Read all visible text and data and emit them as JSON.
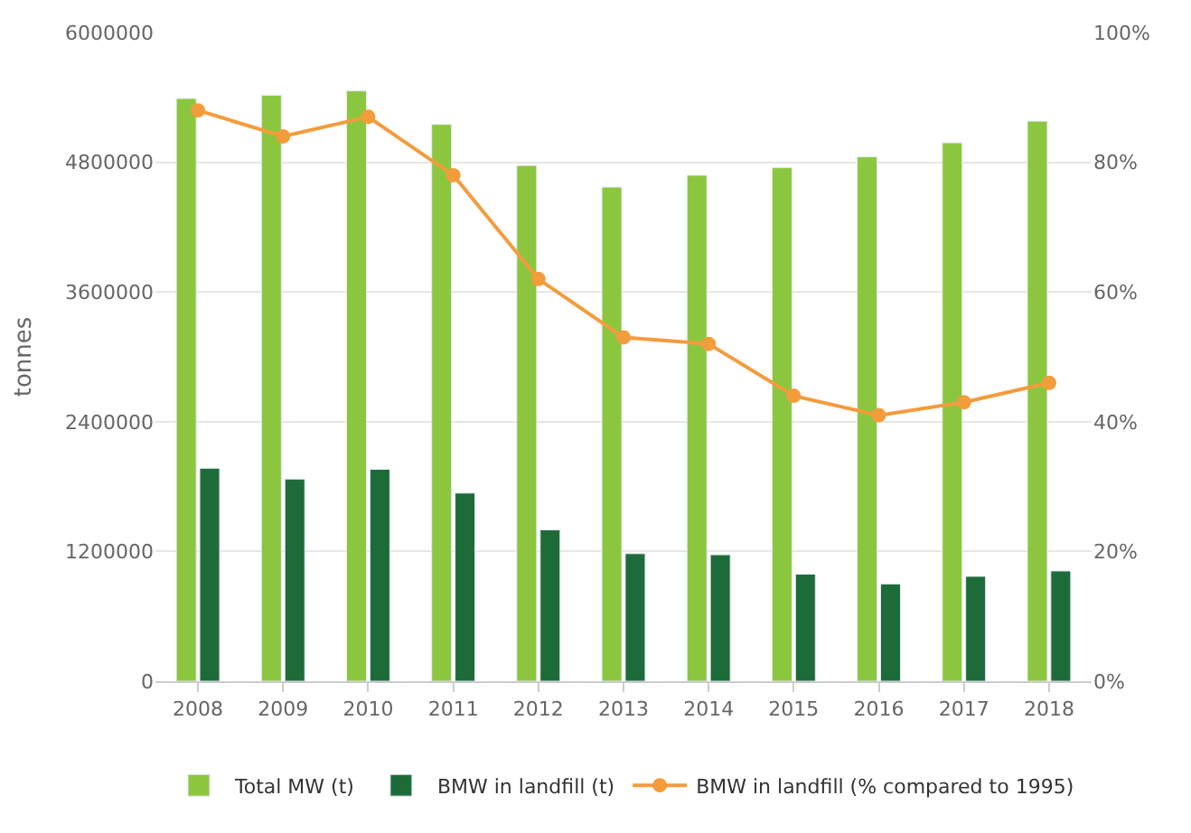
{
  "chart_data": {
    "type": "bar",
    "ylabel": "tonnes",
    "categories": [
      "2008",
      "2009",
      "2010",
      "2011",
      "2012",
      "2013",
      "2014",
      "2015",
      "2016",
      "2017",
      "2018"
    ],
    "series": [
      {
        "name": "Total MW (t)",
        "color": "#8cc63f",
        "values": [
          5390000,
          5420000,
          5460000,
          5150000,
          4770000,
          4570000,
          4680000,
          4750000,
          4850000,
          4980000,
          5180000
        ]
      },
      {
        "name": "BMW in landfill (t)",
        "color": "#1e6b3a",
        "values": [
          1970000,
          1870000,
          1960000,
          1740000,
          1400000,
          1180000,
          1170000,
          990000,
          900000,
          970000,
          1020000
        ]
      },
      {
        "name": "BMW in landfill (% compared to 1995)",
        "type": "line",
        "axis": "y2",
        "color": "#f39c3c",
        "marker": "circle",
        "values": [
          88,
          84,
          87,
          78,
          62,
          53,
          52,
          44,
          41,
          43,
          46
        ]
      }
    ],
    "ylim": [
      0,
      6000000
    ],
    "yticks": [
      0,
      1200000,
      2400000,
      3600000,
      4800000,
      6000000
    ],
    "y2lim": [
      0,
      100
    ],
    "y2ticks": [
      {
        "value": 0,
        "label": "0%"
      },
      {
        "value": 20,
        "label": "20%"
      },
      {
        "value": 40,
        "label": "40%"
      },
      {
        "value": 60,
        "label": "60%"
      },
      {
        "value": 80,
        "label": "80%"
      },
      {
        "value": 100,
        "label": "100%"
      }
    ],
    "grid": "y",
    "legend": "bottom"
  }
}
